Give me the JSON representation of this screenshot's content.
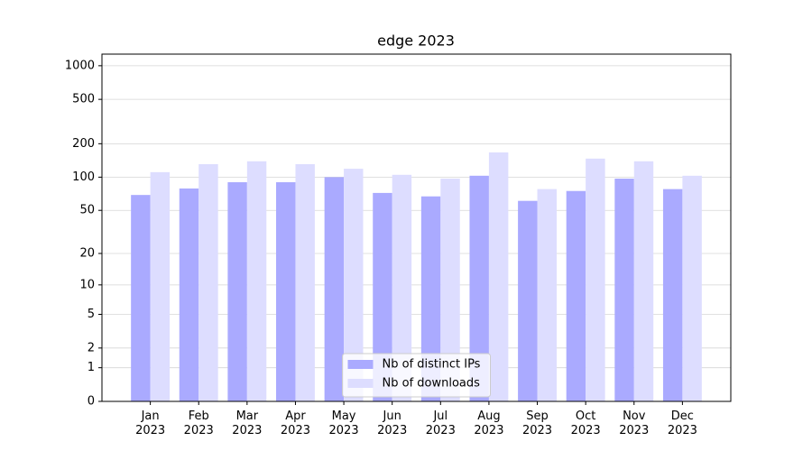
{
  "chart_data": {
    "type": "bar",
    "title": "edge 2023",
    "categories": [
      "Jan\n2023",
      "Feb\n2023",
      "Mar\n2023",
      "Apr\n2023",
      "May\n2023",
      "Jun\n2023",
      "Jul\n2023",
      "Aug\n2023",
      "Sep\n2023",
      "Oct\n2023",
      "Nov\n2023",
      "Dec\n2023"
    ],
    "series": [
      {
        "name": "Nb of distinct IPs",
        "color": "#aaaaff",
        "values": [
          69,
          79,
          90,
          90,
          100,
          72,
          67,
          103,
          61,
          75,
          97,
          78
        ]
      },
      {
        "name": "Nb of downloads",
        "color": "#ddddff",
        "values": [
          111,
          131,
          139,
          131,
          119,
          105,
          97,
          167,
          78,
          147,
          139,
          103
        ]
      }
    ],
    "yscale": "log1p",
    "ylim": [
      0,
      1270
    ],
    "yticks": [
      0,
      1,
      2,
      5,
      10,
      20,
      50,
      100,
      200,
      500,
      1000
    ],
    "grid": true,
    "legend": "lower center"
  }
}
